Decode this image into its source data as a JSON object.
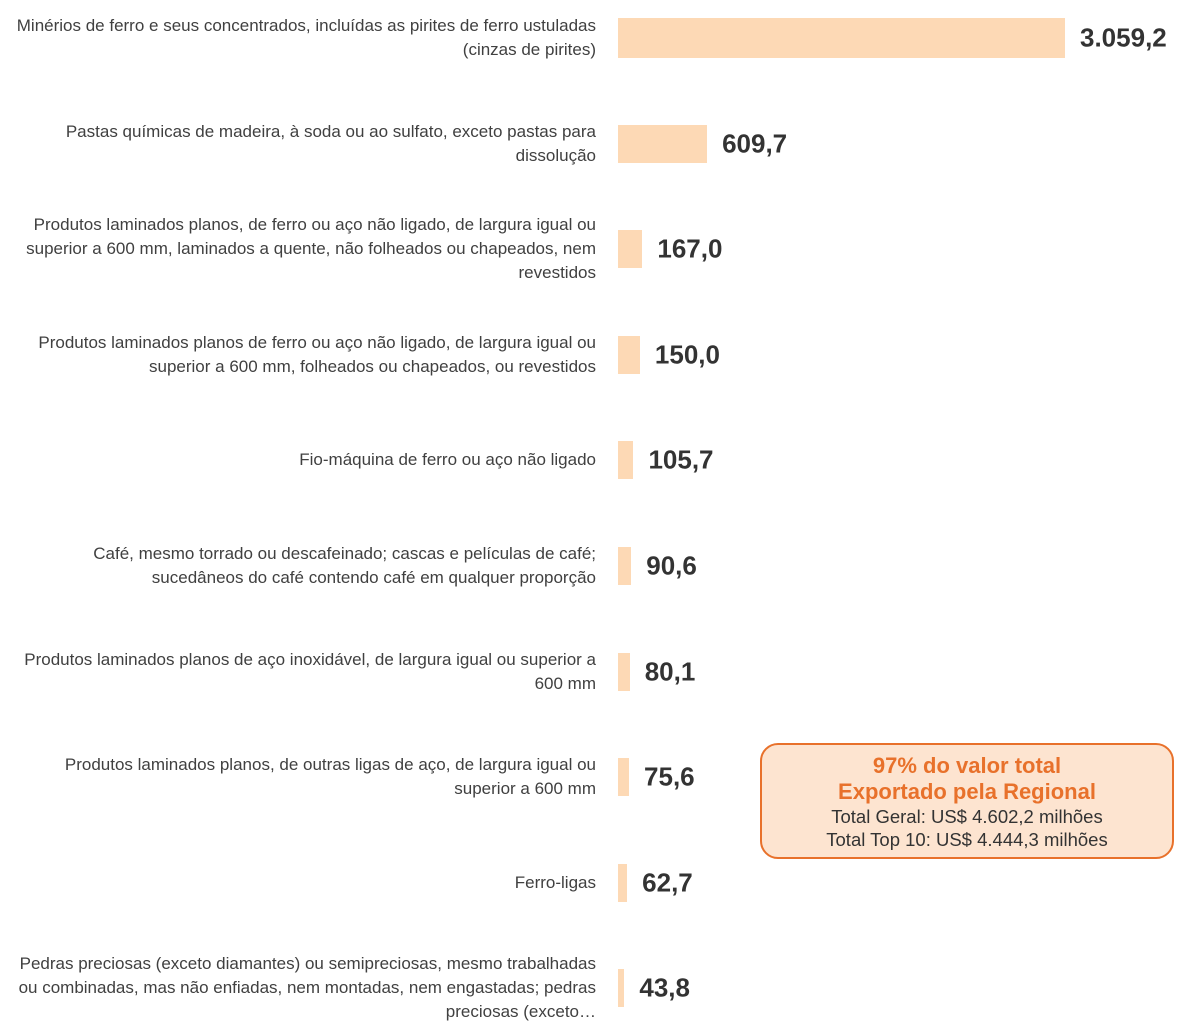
{
  "chart_data": {
    "type": "bar",
    "orientation": "horizontal",
    "color": "#fdd9b5",
    "categories": [
      "Minérios de ferro e seus concentrados, incluídas as pirites de ferro ustuladas (cinzas de pirites)",
      "Pastas químicas de madeira, à soda ou ao sulfato, exceto pastas para dissolução",
      "Produtos laminados planos, de ferro ou aço não ligado, de largura igual ou superior a 600 mm, laminados a quente, não folheados ou chapeados, nem revestidos",
      "Produtos laminados planos de ferro ou aço não ligado, de largura igual ou superior a 600 mm, folheados ou chapeados, ou revestidos",
      "Fio-máquina de ferro ou aço não ligado",
      "Café, mesmo torrado ou descafeinado; cascas e películas de café; sucedâneos do café contendo café em qualquer proporção",
      "Produtos laminados planos de aço inoxidável, de largura igual ou superior a 600 mm",
      "Produtos laminados planos, de outras ligas de aço, de largura igual ou superior a 600 mm",
      "Ferro-ligas",
      "Pedras preciosas (exceto diamantes) ou semipreciosas, mesmo trabalhadas ou combinadas, mas não enfiadas, nem montadas, nem engastadas; pedras preciosas (exceto…"
    ],
    "values": [
      3059.2,
      609.7,
      167.0,
      150.0,
      105.7,
      90.6,
      80.1,
      75.6,
      62.7,
      43.8
    ],
    "value_labels": [
      "3.059,2",
      "609,7",
      "167,0",
      "150,0",
      "105,7",
      "90,6",
      "80,1",
      "75,6",
      "62,7",
      "43,8"
    ],
    "annotation": {
      "headline": [
        "97% do valor total",
        "Exportado pela Regional"
      ],
      "details": [
        "Total Geral: US$ 4.602,2 milhões",
        "Total Top 10: US$ 4.444,3 milhões"
      ]
    }
  }
}
